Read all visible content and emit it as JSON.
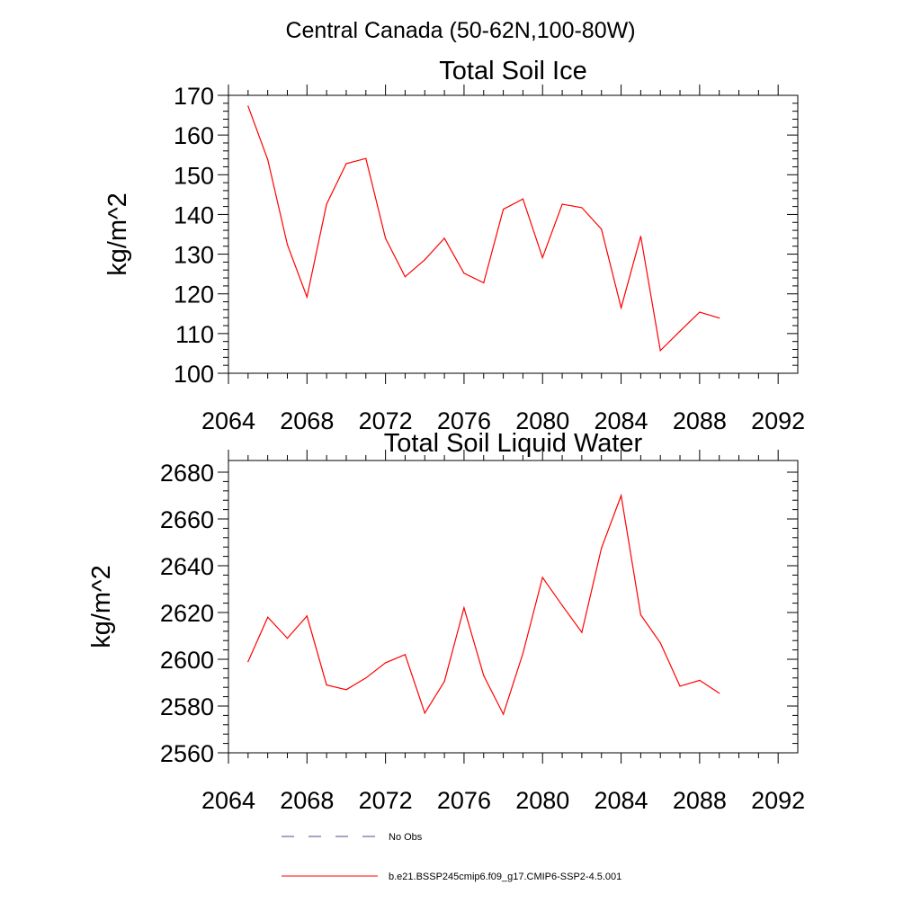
{
  "figure": {
    "suptitle": "Central Canada (50-62N,100-80W)"
  },
  "chart_data": [
    {
      "type": "line",
      "title": "Total Soil Ice",
      "xlabel": "",
      "ylabel": "kg/m^2",
      "xlim": [
        2064,
        2093
      ],
      "ylim": [
        100,
        170
      ],
      "xticks": [
        2064,
        2068,
        2072,
        2076,
        2080,
        2084,
        2088,
        2092
      ],
      "yticks": [
        100,
        110,
        120,
        130,
        140,
        150,
        160,
        170
      ],
      "grid": false,
      "series": [
        {
          "name": "b.e21.BSSP245cmip6.f09_g17.CMIP6-SSP2-4.5.001",
          "color": "#ff0000",
          "x": [
            2065,
            2066,
            2067,
            2068,
            2069,
            2070,
            2071,
            2072,
            2073,
            2074,
            2075,
            2076,
            2077,
            2078,
            2079,
            2080,
            2081,
            2082,
            2083,
            2084,
            2085,
            2086,
            2087,
            2088,
            2089
          ],
          "y": [
            167.3,
            153.8,
            132.4,
            119.2,
            142.6,
            152.8,
            154.1,
            134.0,
            124.3,
            128.6,
            134.0,
            125.2,
            122.8,
            141.3,
            143.9,
            129.1,
            142.6,
            141.7,
            136.3,
            116.5,
            134.5,
            105.7,
            110.6,
            115.4,
            113.9
          ]
        }
      ]
    },
    {
      "type": "line",
      "title": "Total Soil Liquid Water",
      "xlabel": "",
      "ylabel": "kg/m^2",
      "xlim": [
        2064,
        2093
      ],
      "ylim": [
        2560,
        2685
      ],
      "xticks": [
        2064,
        2068,
        2072,
        2076,
        2080,
        2084,
        2088,
        2092
      ],
      "yticks": [
        2560,
        2580,
        2600,
        2620,
        2640,
        2660,
        2680
      ],
      "grid": false,
      "series": [
        {
          "name": "b.e21.BSSP245cmip6.f09_g17.CMIP6-SSP2-4.5.001",
          "color": "#ff0000",
          "x": [
            2065,
            2066,
            2067,
            2068,
            2069,
            2070,
            2071,
            2072,
            2073,
            2074,
            2075,
            2076,
            2077,
            2078,
            2079,
            2080,
            2081,
            2082,
            2083,
            2084,
            2085,
            2086,
            2087,
            2088,
            2089
          ],
          "y": [
            2599.0,
            2618.0,
            2609.0,
            2618.5,
            2589.0,
            2587.0,
            2592.0,
            2598.5,
            2602.0,
            2577.0,
            2590.5,
            2622.0,
            2593.0,
            2576.5,
            2602.5,
            2635.0,
            2623.0,
            2611.5,
            2647.5,
            2670.0,
            2619.0,
            2607.0,
            2588.5,
            2591.0,
            2585.5
          ]
        }
      ]
    }
  ],
  "legend": {
    "placement": "bottom",
    "entries": [
      {
        "label": "No Obs",
        "color": "#4a4f8a",
        "style": "dashed"
      },
      {
        "label": "b.e21.BSSP245cmip6.f09_g17.CMIP6-SSP2-4.5.001",
        "color": "#ff0000",
        "style": "solid"
      }
    ]
  }
}
